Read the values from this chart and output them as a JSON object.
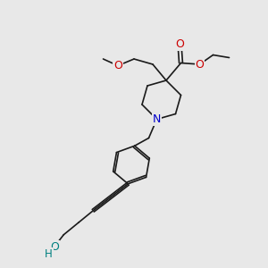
{
  "bg_color": "#e8e8e8",
  "bond_color": "#1a1a1a",
  "O_color": "#cc0000",
  "N_color": "#0000cc",
  "OH_color": "#008080",
  "lw": 1.2,
  "figsize": [
    3.0,
    3.0
  ],
  "dpi": 100,
  "xlim": [
    0,
    10
  ],
  "ylim": [
    0,
    10
  ]
}
